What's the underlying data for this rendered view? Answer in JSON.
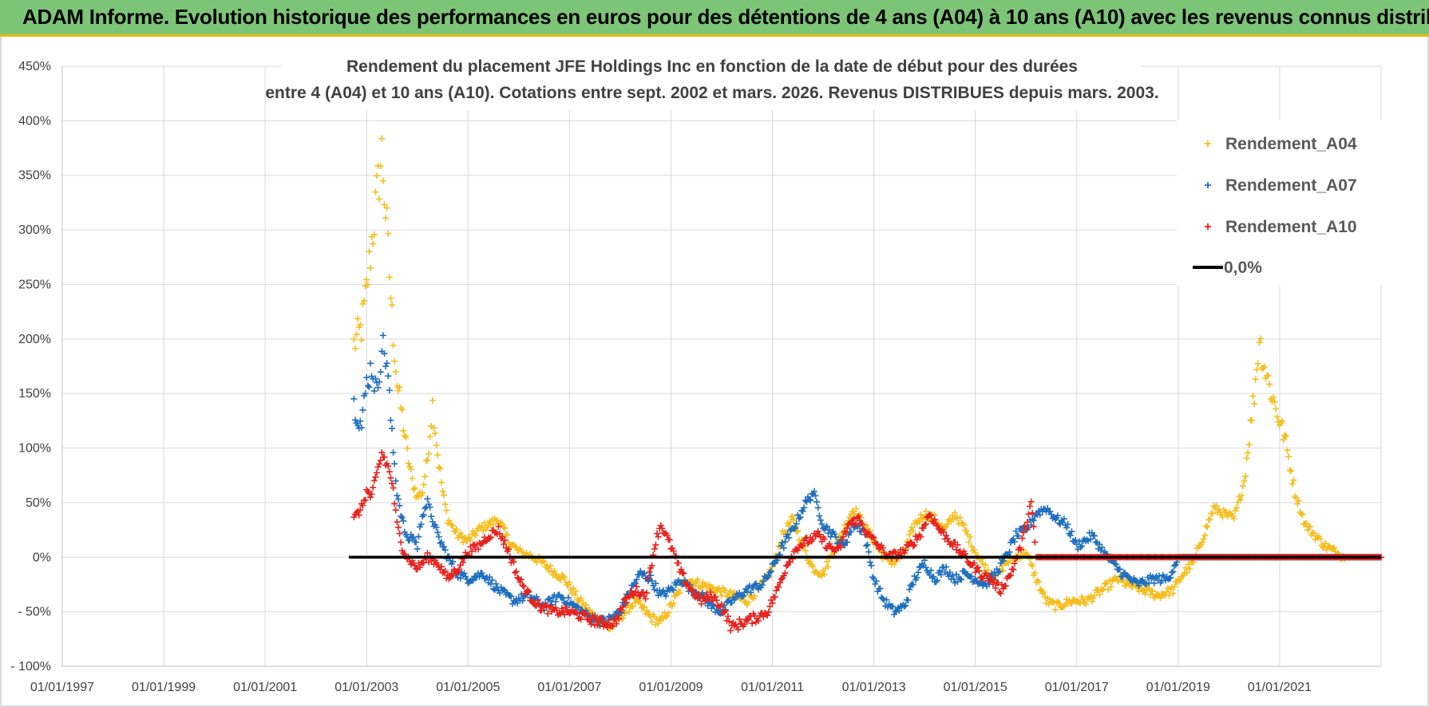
{
  "header": {
    "title": "ADAM Informe. Evolution historique des performances en euros pour des détentions de 4 ans (A04) à 10 ans (A10) avec les revenus connus distribués"
  },
  "chart_data": {
    "type": "scatter",
    "title_line1": "Rendement du placement JFE Holdings Inc en fonction de la date de début pour des durées",
    "title_line2": "entre 4 (A04) et 10 ans (A10). Cotations entre sept. 2002 et mars. 2026. Revenus DISTRIBUES depuis mars. 2003.",
    "xlabel": "",
    "ylabel": "",
    "x_range": [
      "1997-01-01",
      "2023-01-01"
    ],
    "ylim": [
      -100,
      450
    ],
    "y_ticks": [
      "450%",
      "400%",
      "350%",
      "300%",
      "250%",
      "200%",
      "150%",
      "100%",
      "50%",
      "0%",
      "- 50%",
      "- 100%"
    ],
    "y_tick_values": [
      450,
      400,
      350,
      300,
      250,
      200,
      150,
      100,
      50,
      0,
      -50,
      -100
    ],
    "x_ticks": [
      "01/01/1997",
      "01/01/1999",
      "01/01/2001",
      "01/01/2003",
      "01/01/2005",
      "01/01/2007",
      "01/01/2009",
      "01/01/2011",
      "01/01/2013",
      "01/01/2015",
      "01/01/2017",
      "01/01/2019",
      "01/01/2021"
    ],
    "x_tick_years": [
      1997,
      1999,
      2001,
      2003,
      2005,
      2007,
      2009,
      2011,
      2013,
      2015,
      2017,
      2019,
      2021
    ],
    "grid": true,
    "legend_position": "top-right",
    "series": [
      {
        "name": "Rendement_A04",
        "color": "#f5be1f",
        "marker": "+",
        "points": [
          [
            2002.75,
            195
          ],
          [
            2002.9,
            210
          ],
          [
            2003.0,
            245
          ],
          [
            2003.1,
            290
          ],
          [
            2003.2,
            330
          ],
          [
            2003.3,
            370
          ],
          [
            2003.4,
            300
          ],
          [
            2003.5,
            220
          ],
          [
            2003.6,
            160
          ],
          [
            2003.7,
            130
          ],
          [
            2003.8,
            95
          ],
          [
            2003.9,
            70
          ],
          [
            2004.0,
            55
          ],
          [
            2004.1,
            60
          ],
          [
            2004.2,
            90
          ],
          [
            2004.3,
            140
          ],
          [
            2004.4,
            95
          ],
          [
            2004.5,
            60
          ],
          [
            2004.6,
            35
          ],
          [
            2004.8,
            20
          ],
          [
            2005.0,
            15
          ],
          [
            2005.2,
            25
          ],
          [
            2005.4,
            30
          ],
          [
            2005.6,
            35
          ],
          [
            2005.8,
            15
          ],
          [
            2006.0,
            5
          ],
          [
            2006.3,
            0
          ],
          [
            2006.6,
            -10
          ],
          [
            2006.9,
            -20
          ],
          [
            2007.2,
            -40
          ],
          [
            2007.5,
            -55
          ],
          [
            2007.8,
            -65
          ],
          [
            2008.0,
            -55
          ],
          [
            2008.3,
            -40
          ],
          [
            2008.6,
            -55
          ],
          [
            2008.8,
            -60
          ],
          [
            2009.0,
            -45
          ],
          [
            2009.3,
            -20
          ],
          [
            2009.6,
            -25
          ],
          [
            2009.9,
            -30
          ],
          [
            2010.2,
            -35
          ],
          [
            2010.5,
            -40
          ],
          [
            2010.8,
            -25
          ],
          [
            2011.0,
            -10
          ],
          [
            2011.2,
            20
          ],
          [
            2011.4,
            35
          ],
          [
            2011.6,
            10
          ],
          [
            2011.8,
            -10
          ],
          [
            2012.0,
            -15
          ],
          [
            2012.2,
            5
          ],
          [
            2012.4,
            25
          ],
          [
            2012.6,
            45
          ],
          [
            2012.8,
            30
          ],
          [
            2013.0,
            15
          ],
          [
            2013.2,
            0
          ],
          [
            2013.4,
            -5
          ],
          [
            2013.6,
            5
          ],
          [
            2013.8,
            30
          ],
          [
            2014.0,
            40
          ],
          [
            2014.2,
            35
          ],
          [
            2014.4,
            25
          ],
          [
            2014.6,
            40
          ],
          [
            2014.8,
            25
          ],
          [
            2015.0,
            5
          ],
          [
            2015.2,
            -10
          ],
          [
            2015.4,
            -20
          ],
          [
            2015.6,
            -5
          ],
          [
            2015.8,
            0
          ],
          [
            2016.0,
            5
          ],
          [
            2016.2,
            -20
          ],
          [
            2016.4,
            -40
          ],
          [
            2016.6,
            -45
          ],
          [
            2016.9,
            -40
          ],
          [
            2017.2,
            -40
          ],
          [
            2017.5,
            -30
          ],
          [
            2017.8,
            -20
          ],
          [
            2018.0,
            -25
          ],
          [
            2018.3,
            -30
          ],
          [
            2018.6,
            -35
          ],
          [
            2018.9,
            -30
          ],
          [
            2019.1,
            -15
          ],
          [
            2019.3,
            -5
          ],
          [
            2019.5,
            20
          ],
          [
            2019.7,
            45
          ],
          [
            2019.9,
            40
          ],
          [
            2020.1,
            35
          ],
          [
            2020.3,
            70
          ],
          [
            2020.5,
            150
          ],
          [
            2020.6,
            200
          ],
          [
            2020.7,
            175
          ],
          [
            2020.9,
            140
          ],
          [
            2021.1,
            110
          ],
          [
            2021.3,
            60
          ],
          [
            2021.5,
            30
          ],
          [
            2021.7,
            20
          ],
          [
            2021.9,
            10
          ],
          [
            2022.1,
            5
          ],
          [
            2022.3,
            0
          ],
          [
            2022.5,
            0
          ],
          [
            2022.8,
            0
          ],
          [
            2023.0,
            0
          ]
        ]
      },
      {
        "name": "Rendement_A07",
        "color": "#1f6fbf",
        "marker": "+",
        "points": [
          [
            2002.75,
            140
          ],
          [
            2002.9,
            120
          ],
          [
            2003.0,
            160
          ],
          [
            2003.1,
            175
          ],
          [
            2003.2,
            150
          ],
          [
            2003.3,
            195
          ],
          [
            2003.4,
            180
          ],
          [
            2003.5,
            110
          ],
          [
            2003.6,
            60
          ],
          [
            2003.7,
            35
          ],
          [
            2003.8,
            15
          ],
          [
            2003.9,
            20
          ],
          [
            2004.0,
            10
          ],
          [
            2004.1,
            40
          ],
          [
            2004.2,
            50
          ],
          [
            2004.3,
            35
          ],
          [
            2004.4,
            20
          ],
          [
            2004.6,
            0
          ],
          [
            2004.8,
            -15
          ],
          [
            2005.0,
            -20
          ],
          [
            2005.3,
            -15
          ],
          [
            2005.6,
            -30
          ],
          [
            2005.9,
            -40
          ],
          [
            2006.2,
            -35
          ],
          [
            2006.5,
            -45
          ],
          [
            2006.8,
            -35
          ],
          [
            2007.1,
            -45
          ],
          [
            2007.4,
            -55
          ],
          [
            2007.7,
            -60
          ],
          [
            2008.0,
            -50
          ],
          [
            2008.2,
            -30
          ],
          [
            2008.4,
            -15
          ],
          [
            2008.6,
            -20
          ],
          [
            2008.8,
            -35
          ],
          [
            2009.0,
            -30
          ],
          [
            2009.2,
            -20
          ],
          [
            2009.4,
            -30
          ],
          [
            2009.6,
            -35
          ],
          [
            2009.8,
            -45
          ],
          [
            2010.0,
            -50
          ],
          [
            2010.2,
            -40
          ],
          [
            2010.5,
            -30
          ],
          [
            2010.8,
            -25
          ],
          [
            2011.0,
            -10
          ],
          [
            2011.2,
            10
          ],
          [
            2011.4,
            25
          ],
          [
            2011.6,
            45
          ],
          [
            2011.8,
            60
          ],
          [
            2012.0,
            30
          ],
          [
            2012.2,
            20
          ],
          [
            2012.4,
            10
          ],
          [
            2012.6,
            30
          ],
          [
            2012.8,
            25
          ],
          [
            2013.0,
            -20
          ],
          [
            2013.2,
            -40
          ],
          [
            2013.4,
            -50
          ],
          [
            2013.6,
            -45
          ],
          [
            2013.8,
            -20
          ],
          [
            2014.0,
            -5
          ],
          [
            2014.2,
            -20
          ],
          [
            2014.4,
            -10
          ],
          [
            2014.6,
            -20
          ],
          [
            2014.8,
            -15
          ],
          [
            2015.0,
            -20
          ],
          [
            2015.2,
            -25
          ],
          [
            2015.4,
            -15
          ],
          [
            2015.6,
            0
          ],
          [
            2015.8,
            20
          ],
          [
            2016.0,
            25
          ],
          [
            2016.2,
            40
          ],
          [
            2016.4,
            45
          ],
          [
            2016.6,
            35
          ],
          [
            2016.8,
            30
          ],
          [
            2017.0,
            10
          ],
          [
            2017.3,
            20
          ],
          [
            2017.6,
            0
          ],
          [
            2017.9,
            -15
          ],
          [
            2018.2,
            -25
          ],
          [
            2018.5,
            -20
          ],
          [
            2018.8,
            -20
          ],
          [
            2019.0,
            0
          ],
          [
            2019.2,
            0
          ],
          [
            2019.5,
            0
          ],
          [
            2020.0,
            0
          ],
          [
            2021.0,
            0
          ],
          [
            2022.0,
            0
          ],
          [
            2023.0,
            0
          ]
        ]
      },
      {
        "name": "Rendement_A10",
        "color": "#e8211c",
        "marker": "+",
        "points": [
          [
            2002.75,
            35
          ],
          [
            2002.9,
            45
          ],
          [
            2003.0,
            60
          ],
          [
            2003.1,
            55
          ],
          [
            2003.2,
            75
          ],
          [
            2003.3,
            95
          ],
          [
            2003.4,
            85
          ],
          [
            2003.5,
            70
          ],
          [
            2003.6,
            30
          ],
          [
            2003.7,
            10
          ],
          [
            2003.8,
            0
          ],
          [
            2003.9,
            -5
          ],
          [
            2004.0,
            -10
          ],
          [
            2004.2,
            0
          ],
          [
            2004.4,
            -5
          ],
          [
            2004.6,
            -20
          ],
          [
            2004.8,
            -10
          ],
          [
            2005.0,
            5
          ],
          [
            2005.2,
            10
          ],
          [
            2005.4,
            20
          ],
          [
            2005.6,
            25
          ],
          [
            2005.8,
            5
          ],
          [
            2006.0,
            -20
          ],
          [
            2006.2,
            -35
          ],
          [
            2006.4,
            -45
          ],
          [
            2006.7,
            -50
          ],
          [
            2007.0,
            -50
          ],
          [
            2007.3,
            -55
          ],
          [
            2007.6,
            -60
          ],
          [
            2007.9,
            -60
          ],
          [
            2008.1,
            -40
          ],
          [
            2008.3,
            -30
          ],
          [
            2008.5,
            -35
          ],
          [
            2008.7,
            15
          ],
          [
            2008.8,
            30
          ],
          [
            2009.0,
            10
          ],
          [
            2009.2,
            -15
          ],
          [
            2009.4,
            -30
          ],
          [
            2009.6,
            -40
          ],
          [
            2009.8,
            -35
          ],
          [
            2010.0,
            -45
          ],
          [
            2010.2,
            -65
          ],
          [
            2010.4,
            -60
          ],
          [
            2010.7,
            -55
          ],
          [
            2010.9,
            -50
          ],
          [
            2011.1,
            -30
          ],
          [
            2011.3,
            -5
          ],
          [
            2011.5,
            10
          ],
          [
            2011.7,
            15
          ],
          [
            2011.9,
            20
          ],
          [
            2012.1,
            10
          ],
          [
            2012.3,
            5
          ],
          [
            2012.5,
            30
          ],
          [
            2012.7,
            35
          ],
          [
            2012.9,
            20
          ],
          [
            2013.1,
            10
          ],
          [
            2013.3,
            0
          ],
          [
            2013.6,
            5
          ],
          [
            2013.9,
            20
          ],
          [
            2014.1,
            40
          ],
          [
            2014.3,
            25
          ],
          [
            2014.5,
            15
          ],
          [
            2014.7,
            5
          ],
          [
            2014.9,
            -5
          ],
          [
            2015.1,
            -15
          ],
          [
            2015.3,
            -20
          ],
          [
            2015.5,
            -30
          ],
          [
            2015.7,
            -15
          ],
          [
            2015.9,
            10
          ],
          [
            2016.0,
            30
          ],
          [
            2016.1,
            50
          ],
          [
            2016.2,
            0
          ],
          [
            2017.0,
            0
          ],
          [
            2018.0,
            0
          ],
          [
            2019.0,
            0
          ],
          [
            2020.0,
            0
          ],
          [
            2021.0,
            0
          ],
          [
            2022.0,
            0
          ],
          [
            2023.0,
            0
          ]
        ]
      },
      {
        "name": "0,0%",
        "color": "#000000",
        "type": "line",
        "points": [
          [
            2002.65,
            0
          ],
          [
            2023.0,
            0
          ]
        ]
      }
    ]
  }
}
